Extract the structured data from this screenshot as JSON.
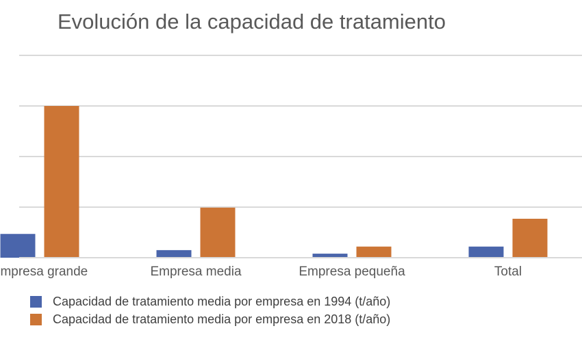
{
  "chart_data": {
    "type": "bar",
    "title": "Evolución de la capacidad de tratamiento",
    "categories": [
      "Empresa grande",
      "Empresa media",
      "Empresa pequeña",
      "Total"
    ],
    "series": [
      {
        "name": "Capacidad de tratamiento media por empresa en 1994 (t/año)",
        "color": "#4a65ab",
        "values": [
          0.47,
          0.15,
          0.08,
          0.22
        ]
      },
      {
        "name": "Capacidad de tratamiento media por empresa en 2018 (t/año)",
        "color": "#cc7535",
        "values": [
          3.0,
          0.99,
          0.22,
          0.77
        ]
      }
    ],
    "xlabel": "",
    "ylabel": "",
    "ylim": [
      0,
      4
    ],
    "y_units": "relative gridline units (axis labels not visible)",
    "grid": true,
    "legend_position": "bottom-left"
  }
}
